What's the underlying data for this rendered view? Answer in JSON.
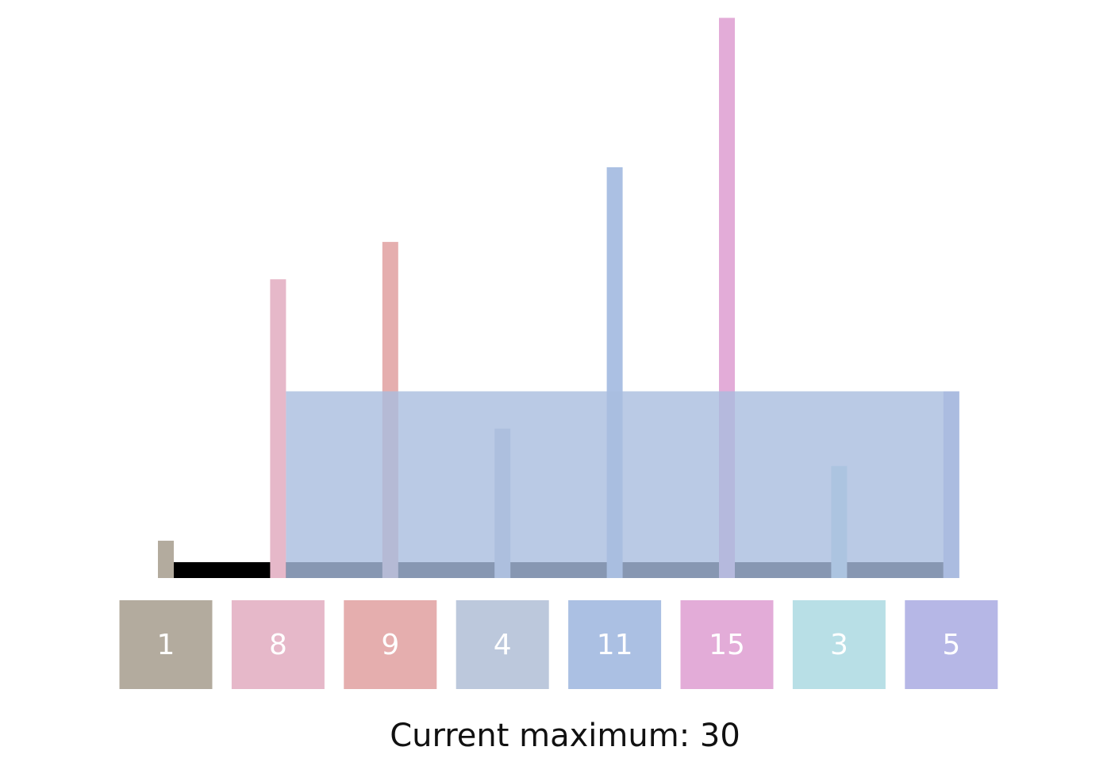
{
  "chart_data": {
    "type": "container",
    "values": [
      1,
      8,
      9,
      4,
      11,
      15,
      3,
      5
    ],
    "colors": [
      "#b3ab9e",
      "#e6b8c9",
      "#e5aeae",
      "#bcc8dc",
      "#abc0e3",
      "#e3acd8",
      "#b8dfe6",
      "#b6b7e6"
    ],
    "water_between": [
      1,
      7
    ],
    "water_color": "#a9bddf",
    "caption": "Current maximum: 30"
  }
}
